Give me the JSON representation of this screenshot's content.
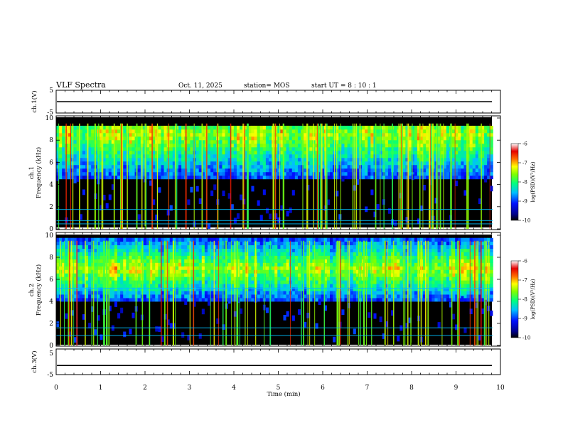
{
  "header": {
    "title": "VLF Spectra",
    "date": "Oct. 11, 2025",
    "station": "station= MOS",
    "start": "start  UT  =   8  : 10 : 1"
  },
  "chart_data": [
    {
      "type": "line",
      "name": "ch1-waveform",
      "ylabel": "ch.1(V)",
      "ylim": [
        -5,
        5
      ],
      "yticks": [
        "5",
        "-5"
      ],
      "baseline_value": 0,
      "xlim": [
        0,
        10
      ]
    },
    {
      "type": "heatmap",
      "name": "ch1-spectrogram",
      "ylabel_top": "ch.1",
      "ylabel": "Frequency (kHz)",
      "ylim": [
        0,
        10
      ],
      "yticks": [
        "0",
        "2",
        "4",
        "6",
        "8",
        "10"
      ],
      "xlim": [
        0,
        9.83
      ],
      "main_band_khz": [
        4.5,
        9.3
      ],
      "band_peak_khz": 8.4,
      "narrowband_lines_khz": [
        0.45,
        0.75,
        1.75
      ],
      "colorbar": {
        "label": "log(PSD)(V²/Hz)",
        "ticks": [
          "-6",
          "-7",
          "-8",
          "-9",
          "-10"
        ],
        "range": [
          -10,
          -6
        ]
      }
    },
    {
      "type": "heatmap",
      "name": "ch2-spectrogram",
      "ylabel_top": "ch.2",
      "ylabel": "Frequency (kHz)",
      "ylim": [
        0,
        10
      ],
      "yticks": [
        "0",
        "2",
        "4",
        "6",
        "8",
        "10"
      ],
      "xlim": [
        0,
        9.83
      ],
      "main_band_khz": [
        4.0,
        9.6
      ],
      "band_peak_khz": 6.8,
      "narrowband_lines_khz": [
        0.9,
        1.6,
        5.2
      ],
      "colorbar": {
        "label": "log(PSD)(V²/Hz)",
        "ticks": [
          "-6",
          "-7",
          "-8",
          "-9",
          "-10"
        ],
        "range": [
          -10,
          -6
        ]
      }
    },
    {
      "type": "line",
      "name": "ch3-waveform",
      "ylabel": "ch.3(V)",
      "ylim": [
        -5,
        5
      ],
      "yticks": [
        "5",
        "-5"
      ],
      "baseline_value": -1,
      "xlim": [
        0,
        10
      ]
    }
  ],
  "xaxis": {
    "label": "Time  (min)",
    "range": [
      0,
      10
    ],
    "ticks": [
      "0",
      "1",
      "2",
      "3",
      "4",
      "5",
      "6",
      "7",
      "8",
      "9",
      "10"
    ]
  }
}
